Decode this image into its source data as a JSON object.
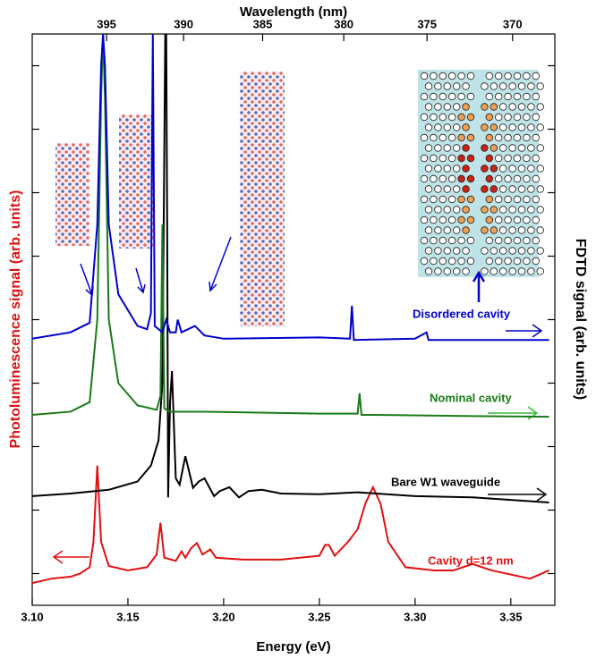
{
  "chart_data": {
    "type": "line",
    "top_axis_title": "Wavelength (nm)",
    "xlabel": "Energy (eV)",
    "ylabel": "Photoluminescence signal (arb. units)",
    "y2label": "FDTD signal (arb. units)",
    "xlim": [
      3.1,
      3.373
    ],
    "xticks": [
      {
        "value": 3.1,
        "label": "3.10"
      },
      3.15,
      {
        "value": 3.2,
        "label": "3.20"
      },
      3.25,
      {
        "value": 3.3,
        "label": "3.30"
      },
      3.35
    ],
    "x2ticks": [
      395,
      390,
      385,
      380,
      375,
      370
    ],
    "ylim": [
      0,
      9
    ],
    "yticks": [
      0.5,
      1.5,
      2.5,
      3.5,
      4.5,
      5.5,
      6.5,
      7.5,
      8.5
    ],
    "series": [
      {
        "name": "Cavity d=12 nm",
        "color": "#e01010",
        "x": [
          3.1,
          3.11,
          3.12,
          3.125,
          3.13,
          3.132,
          3.134,
          3.136,
          3.14,
          3.15,
          3.16,
          3.165,
          3.167,
          3.169,
          3.175,
          3.178,
          3.18,
          3.183,
          3.186,
          3.189,
          3.193,
          3.196,
          3.21,
          3.23,
          3.25,
          3.253,
          3.255,
          3.258,
          3.265,
          3.27,
          3.274,
          3.278,
          3.282,
          3.286,
          3.295,
          3.31,
          3.32,
          3.33,
          3.34,
          3.36,
          3.37
        ],
        "values": [
          0.35,
          0.42,
          0.45,
          0.5,
          0.6,
          1.0,
          2.2,
          1.0,
          0.62,
          0.55,
          0.6,
          0.8,
          1.3,
          0.75,
          0.7,
          0.85,
          0.75,
          0.9,
          0.98,
          0.8,
          0.88,
          0.75,
          0.72,
          0.72,
          0.78,
          0.95,
          0.95,
          0.78,
          1.0,
          1.2,
          1.6,
          1.86,
          1.6,
          1.0,
          0.6,
          0.55,
          0.55,
          0.65,
          0.55,
          0.42,
          0.55
        ]
      },
      {
        "name": "Bare W1 waveguide",
        "color": "#000000",
        "x": [
          3.1,
          3.12,
          3.14,
          3.155,
          3.162,
          3.166,
          3.168,
          3.1695,
          3.17,
          3.1705,
          3.171,
          3.172,
          3.173,
          3.175,
          3.177,
          3.18,
          3.184,
          3.187,
          3.19,
          3.195,
          3.198,
          3.203,
          3.208,
          3.213,
          3.22,
          3.23,
          3.25,
          3.27,
          3.3,
          3.33,
          3.37
        ],
        "values": [
          1.72,
          1.76,
          1.82,
          1.95,
          2.2,
          2.6,
          3.5,
          9,
          9,
          6,
          1.7,
          3.2,
          3.69,
          2.0,
          1.9,
          2.35,
          1.85,
          1.95,
          2.0,
          1.72,
          1.8,
          1.86,
          1.7,
          1.8,
          1.82,
          1.76,
          1.75,
          1.78,
          1.72,
          1.7,
          1.62
        ]
      },
      {
        "name": "Nominal cavity",
        "color": "#1a7a1a",
        "x": [
          3.1,
          3.12,
          3.13,
          3.134,
          3.136,
          3.137,
          3.138,
          3.14,
          3.145,
          3.155,
          3.165,
          3.167,
          3.168,
          3.169,
          3.172,
          3.19,
          3.25,
          3.27,
          3.271,
          3.272,
          3.28,
          3.33,
          3.37
        ],
        "values": [
          3.0,
          3.05,
          3.2,
          4.5,
          8,
          9,
          8,
          4.5,
          3.5,
          3.15,
          3.08,
          3.3,
          6.0,
          3.1,
          3.05,
          3.05,
          3.02,
          3.02,
          3.34,
          3.0,
          3.0,
          2.98,
          2.97
        ]
      },
      {
        "name": "Disordered cavity",
        "color": "#0000cc",
        "x": [
          3.1,
          3.12,
          3.13,
          3.134,
          3.136,
          3.137,
          3.138,
          3.14,
          3.145,
          3.155,
          3.16,
          3.162,
          3.163,
          3.164,
          3.168,
          3.17,
          3.172,
          3.175,
          3.176,
          3.178,
          3.185,
          3.19,
          3.2,
          3.25,
          3.266,
          3.267,
          3.268,
          3.3,
          3.306,
          3.307,
          3.37
        ],
        "values": [
          4.2,
          4.3,
          4.45,
          6,
          8.5,
          9,
          8.5,
          6,
          4.9,
          4.4,
          4.35,
          4.6,
          9,
          4.4,
          4.3,
          4.5,
          4.3,
          4.3,
          4.5,
          4.3,
          4.4,
          4.25,
          4.2,
          4.22,
          4.2,
          4.72,
          4.18,
          4.2,
          4.3,
          4.18,
          4.18
        ]
      }
    ]
  }
}
